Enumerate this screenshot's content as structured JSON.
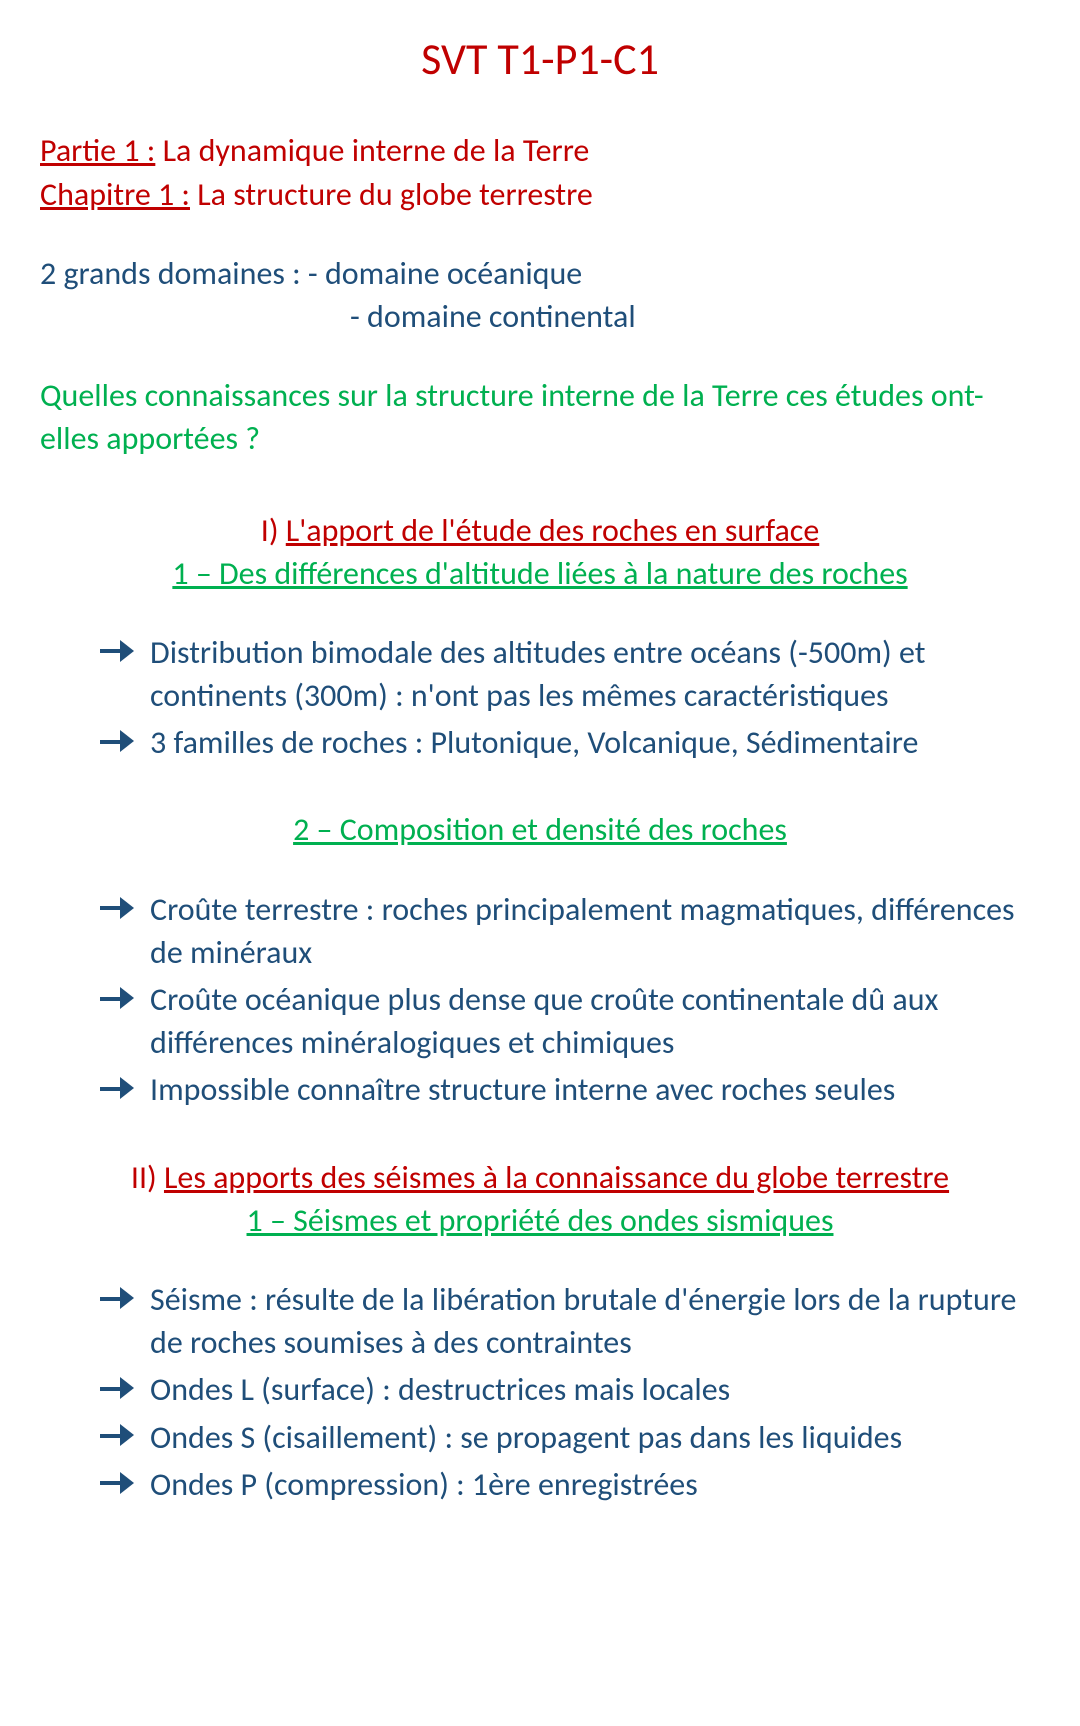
{
  "colors": {
    "red": "#c00000",
    "blue": "#1f4e79",
    "green": "#00b050",
    "background": "#ffffff"
  },
  "typography": {
    "title_fontsize": 44,
    "body_fontsize": 32,
    "font_family": "Calibri"
  },
  "title": "SVT T1-P1-C1",
  "header": {
    "partie_label": "Partie 1 :",
    "partie_text": " La dynamique interne de la Terre",
    "chapitre_label": "Chapitre 1 :",
    "chapitre_text": " La structure du globe terrestre"
  },
  "domains": {
    "line1": "2 grands domaines : - domaine océanique",
    "line2": "- domaine continental"
  },
  "question": "Quelles connaissances sur la structure interne de la Terre ces études ont-elles apportées ?",
  "section1": {
    "num": "I) ",
    "title": "L'apport de l'étude des roches en surface",
    "sub1": {
      "title": "1 – Des différences d'altitude liées à la nature des roches",
      "bullets": [
        "Distribution bimodale des altitudes entre océans (-500m) et continents (300m) : n'ont pas les mêmes caractéristiques",
        "3 familles de roches : Plutonique, Volcanique, Sédimentaire"
      ]
    },
    "sub2": {
      "title": "2 – Composition et densité des roches",
      "bullets": [
        "Croûte terrestre : roches principalement magmatiques, différences de minéraux",
        "Croûte océanique plus dense que croûte continentale dû aux différences minéralogiques et chimiques",
        "Impossible connaître structure interne avec roches seules"
      ]
    }
  },
  "section2": {
    "num": "II) ",
    "title": "Les apports des séismes à la connaissance du globe terrestre",
    "sub1": {
      "title": "1 – Séismes et propriété des ondes sismiques",
      "bullets": [
        "Séisme : résulte de la libération brutale d'énergie lors de la rupture de roches soumises à des contraintes",
        "Ondes L (surface) : destructrices mais locales",
        "Ondes S (cisaillement) : se propagent pas dans les liquides",
        "Ondes P (compression) : 1ère enregistrées"
      ]
    }
  }
}
